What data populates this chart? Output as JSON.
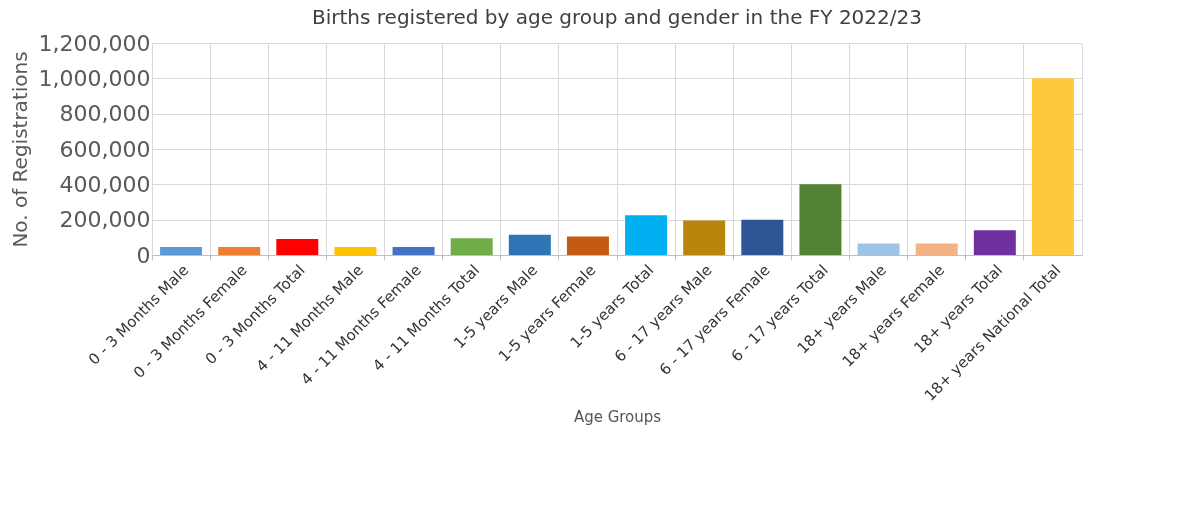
{
  "chart_data": {
    "type": "bar",
    "title": "Births registered by age group and gender in the FY 2022/23",
    "xlabel": "Age Groups",
    "ylabel": "No. of Registrations",
    "categories": [
      "0 - 3 Months Male",
      "0 - 3 Months Female",
      "0 - 3 Months Total",
      "4 - 11 Months Male",
      "4 - 11 Months Female",
      "4 - 11 Months Total",
      "1-5 years Male",
      "1-5 years Female",
      "1-5 years Total",
      "6 - 17 years Male",
      "6 - 17 years Female",
      "6 - 17 years Total",
      "18+ years Male",
      "18+ years Female",
      "18+ years Total",
      "18+ years National Total"
    ],
    "values": [
      45000,
      45000,
      90000,
      45000,
      45000,
      95000,
      115000,
      105000,
      225000,
      195000,
      200000,
      400000,
      65000,
      65000,
      140000,
      1000000
    ],
    "colors": [
      "#5b9bd5",
      "#ed7d31",
      "#ff0000",
      "#ffc000",
      "#4472c4",
      "#70ad47",
      "#2e75b6",
      "#c55a11",
      "#00b0f0",
      "#b8860b",
      "#2f5597",
      "#548235",
      "#9dc3e6",
      "#f4b183",
      "#7030a0",
      "#ffc83d"
    ],
    "ylim": [
      0,
      1200000
    ],
    "yticks": [
      0,
      {
        "value": 200000,
        "label": "200,000"
      },
      {
        "value": 400000,
        "label": "400,000"
      },
      {
        "value": 600000,
        "label": "600,000"
      },
      {
        "value": 800000,
        "label": "800,000"
      },
      {
        "value": 1000000,
        "label": "1,000,000"
      },
      {
        "value": 1200000,
        "label": "1,200,000"
      }
    ],
    "grid": true,
    "legend": false
  }
}
